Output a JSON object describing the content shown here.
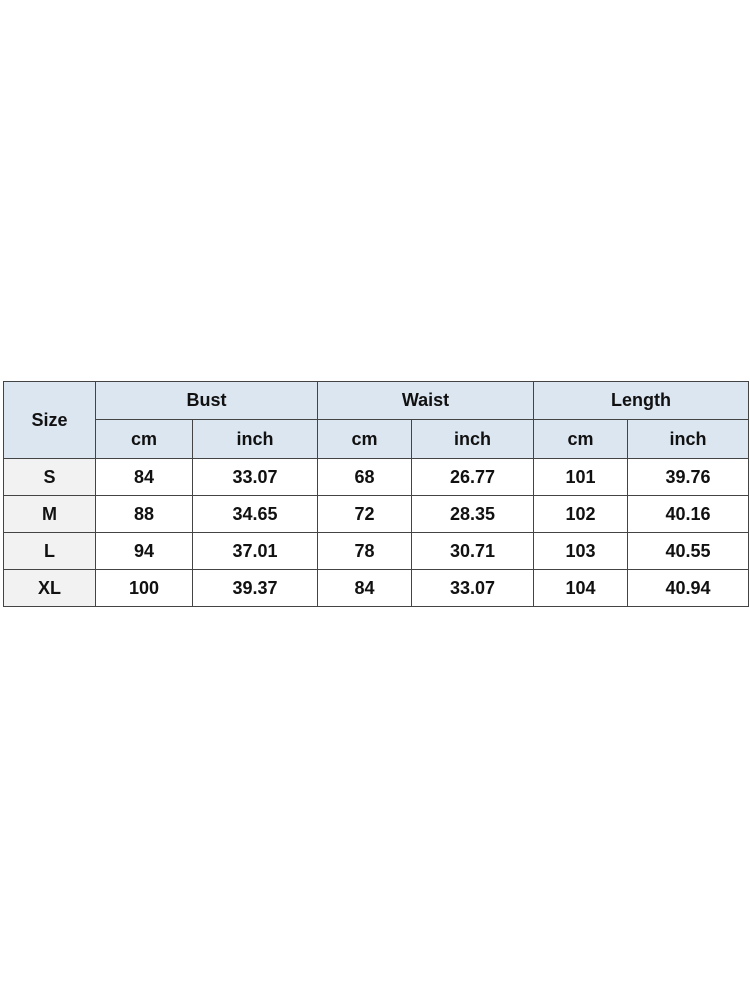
{
  "table": {
    "size_label": "Size",
    "groups": [
      "Bust",
      "Waist",
      "Length"
    ],
    "units": [
      "cm",
      "inch",
      "cm",
      "inch",
      "cm",
      "inch"
    ],
    "rows": [
      [
        "S",
        "84",
        "33.07",
        "68",
        "26.77",
        "101",
        "39.76"
      ],
      [
        "M",
        "88",
        "34.65",
        "72",
        "28.35",
        "102",
        "40.16"
      ],
      [
        "L",
        "94",
        "37.01",
        "78",
        "30.71",
        "103",
        "40.55"
      ],
      [
        "XL",
        "100",
        "39.37",
        "84",
        "33.07",
        "104",
        "40.94"
      ]
    ]
  },
  "colors": {
    "header_bg": "#dce6f1",
    "size_cell_bg": "#f2f2f2",
    "border": "#444444"
  }
}
